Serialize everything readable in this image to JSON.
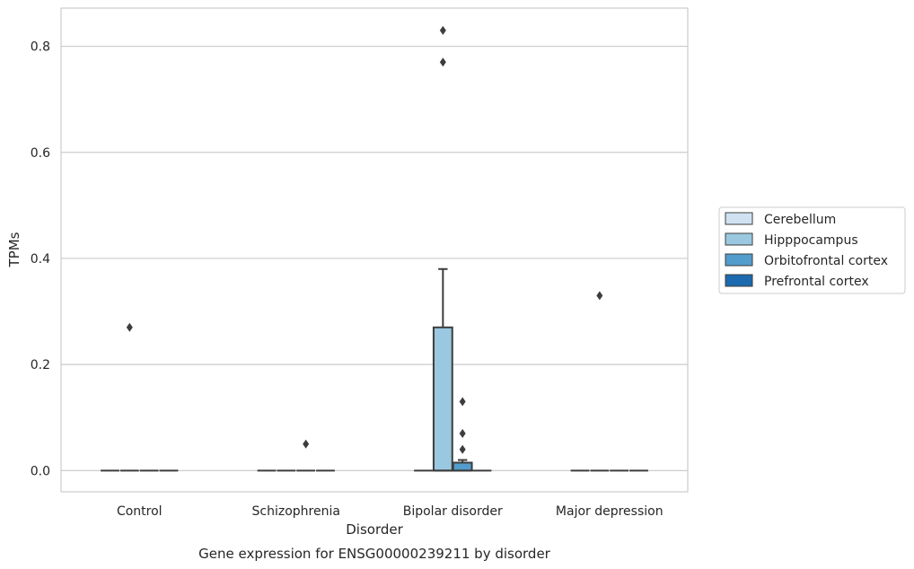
{
  "chart_data": {
    "type": "box",
    "title": "",
    "caption": "Gene expression for ENSG00000239211 by disorder",
    "xlabel": "Disorder",
    "ylabel": "TPMs",
    "categories": [
      "Control",
      "Schizophrenia",
      "Bipolar disorder",
      "Major depression"
    ],
    "ylim": [
      -0.04,
      0.872
    ],
    "yticks": [
      0.0,
      0.2,
      0.4,
      0.6,
      0.8
    ],
    "ytick_labels": [
      "0.0",
      "0.2",
      "0.4",
      "0.6",
      "0.8"
    ],
    "grid": "horizontal",
    "legend_position": "right",
    "series": [
      {
        "name": "Cerebellum",
        "color": "#d0e2f2",
        "boxes": [
          {
            "category": "Control",
            "q1": 0,
            "median": 0,
            "q3": 0,
            "whislo": 0,
            "whishi": 0,
            "fliers": []
          },
          {
            "category": "Schizophrenia",
            "q1": 0,
            "median": 0,
            "q3": 0,
            "whislo": 0,
            "whishi": 0,
            "fliers": []
          },
          {
            "category": "Bipolar disorder",
            "q1": 0,
            "median": 0,
            "q3": 0,
            "whislo": 0,
            "whishi": 0,
            "fliers": []
          },
          {
            "category": "Major depression",
            "q1": 0,
            "median": 0,
            "q3": 0,
            "whislo": 0,
            "whishi": 0,
            "fliers": []
          }
        ]
      },
      {
        "name": "Hipppocampus",
        "color": "#9ac8e0",
        "boxes": [
          {
            "category": "Control",
            "q1": 0,
            "median": 0,
            "q3": 0,
            "whislo": 0,
            "whishi": 0,
            "fliers": [
              0.27
            ]
          },
          {
            "category": "Schizophrenia",
            "q1": 0,
            "median": 0,
            "q3": 0,
            "whislo": 0,
            "whishi": 0,
            "fliers": []
          },
          {
            "category": "Bipolar disorder",
            "q1": 0,
            "median": 0,
            "q3": 0.27,
            "whislo": 0,
            "whishi": 0.38,
            "fliers": [
              0.77,
              0.83
            ]
          },
          {
            "category": "Major depression",
            "q1": 0,
            "median": 0,
            "q3": 0,
            "whislo": 0,
            "whishi": 0,
            "fliers": [
              0.33
            ]
          }
        ]
      },
      {
        "name": "Orbitofrontal cortex",
        "color": "#529dcc",
        "boxes": [
          {
            "category": "Control",
            "q1": 0,
            "median": 0,
            "q3": 0,
            "whislo": 0,
            "whishi": 0,
            "fliers": []
          },
          {
            "category": "Schizophrenia",
            "q1": 0,
            "median": 0,
            "q3": 0,
            "whislo": 0,
            "whishi": 0,
            "fliers": [
              0.05
            ]
          },
          {
            "category": "Bipolar disorder",
            "q1": 0,
            "median": 0,
            "q3": 0.015,
            "whislo": 0,
            "whishi": 0.02,
            "fliers": [
              0.04,
              0.07,
              0.13
            ]
          },
          {
            "category": "Major depression",
            "q1": 0,
            "median": 0,
            "q3": 0,
            "whislo": 0,
            "whishi": 0,
            "fliers": []
          }
        ]
      },
      {
        "name": "Prefrontal cortex",
        "color": "#1c6aaf",
        "boxes": [
          {
            "category": "Control",
            "q1": 0,
            "median": 0,
            "q3": 0,
            "whislo": 0,
            "whishi": 0,
            "fliers": []
          },
          {
            "category": "Schizophrenia",
            "q1": 0,
            "median": 0,
            "q3": 0,
            "whislo": 0,
            "whishi": 0,
            "fliers": []
          },
          {
            "category": "Bipolar disorder",
            "q1": 0,
            "median": 0,
            "q3": 0,
            "whislo": 0,
            "whishi": 0,
            "fliers": []
          },
          {
            "category": "Major depression",
            "q1": 0,
            "median": 0,
            "q3": 0,
            "whislo": 0,
            "whishi": 0,
            "fliers": []
          }
        ]
      }
    ],
    "colors": {
      "grid": "#cccccc",
      "frame": "#cccccc",
      "box_edge": "#3d3d3d",
      "text": "#262626"
    }
  }
}
